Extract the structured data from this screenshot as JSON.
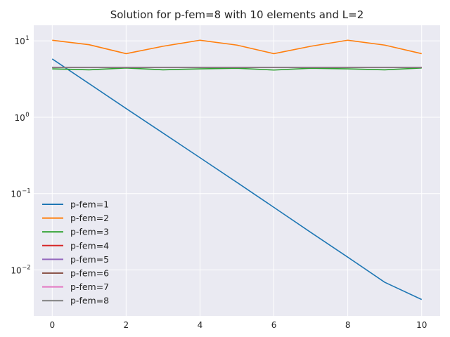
{
  "chart_data": {
    "type": "line",
    "title": "Solution for p-fem=8 with 10 elements and L=2",
    "xlabel": "",
    "ylabel": "",
    "x": [
      0,
      1,
      2,
      3,
      4,
      5,
      6,
      7,
      8,
      9,
      10
    ],
    "xlim": [
      -0.5,
      10.5
    ],
    "ylim": [
      0.0025,
      16
    ],
    "yscale": "log",
    "xticks": [
      0,
      2,
      4,
      6,
      8,
      10
    ],
    "yticks": [
      {
        "value": 0.01,
        "base": "10",
        "exp": "−2"
      },
      {
        "value": 0.1,
        "base": "10",
        "exp": "−1"
      },
      {
        "value": 1,
        "base": "10",
        "exp": "0"
      },
      {
        "value": 10,
        "base": "10",
        "exp": "1"
      }
    ],
    "grid": true,
    "legend_position": "lower-left",
    "series": [
      {
        "name": "p-fem=1",
        "color": "#1f77b4",
        "values": [
          5.8,
          2.75,
          1.3,
          0.62,
          0.295,
          0.14,
          0.066,
          0.031,
          0.0147,
          0.0069,
          0.0041
        ]
      },
      {
        "name": "p-fem=2",
        "color": "#ff7f0e",
        "values": [
          10.2,
          8.9,
          6.8,
          8.5,
          10.2,
          8.8,
          6.8,
          8.5,
          10.2,
          8.8,
          6.8
        ]
      },
      {
        "name": "p-fem=3",
        "color": "#2ca02c",
        "values": [
          4.3,
          4.18,
          4.42,
          4.18,
          4.3,
          4.38,
          4.15,
          4.38,
          4.3,
          4.18,
          4.42
        ]
      },
      {
        "name": "p-fem=4",
        "color": "#d62728",
        "values": [
          4.5,
          4.5,
          4.5,
          4.5,
          4.5,
          4.5,
          4.5,
          4.5,
          4.5,
          4.5,
          4.5
        ]
      },
      {
        "name": "p-fem=5",
        "color": "#9467bd",
        "values": [
          4.5,
          4.5,
          4.5,
          4.5,
          4.5,
          4.5,
          4.5,
          4.5,
          4.5,
          4.5,
          4.5
        ]
      },
      {
        "name": "p-fem=6",
        "color": "#8c564b",
        "values": [
          4.5,
          4.5,
          4.5,
          4.5,
          4.5,
          4.5,
          4.5,
          4.5,
          4.5,
          4.5,
          4.5
        ]
      },
      {
        "name": "p-fem=7",
        "color": "#e377c2",
        "values": [
          4.5,
          4.5,
          4.5,
          4.5,
          4.5,
          4.5,
          4.5,
          4.5,
          4.5,
          4.5,
          4.5
        ]
      },
      {
        "name": "p-fem=8",
        "color": "#7f7f7f",
        "values": [
          4.5,
          4.5,
          4.5,
          4.5,
          4.5,
          4.5,
          4.5,
          4.5,
          4.5,
          4.5,
          4.5
        ]
      }
    ],
    "style": {
      "plot_background": "#eaeaf2",
      "grid_color": "#ffffff",
      "text_color": "#262626"
    }
  }
}
